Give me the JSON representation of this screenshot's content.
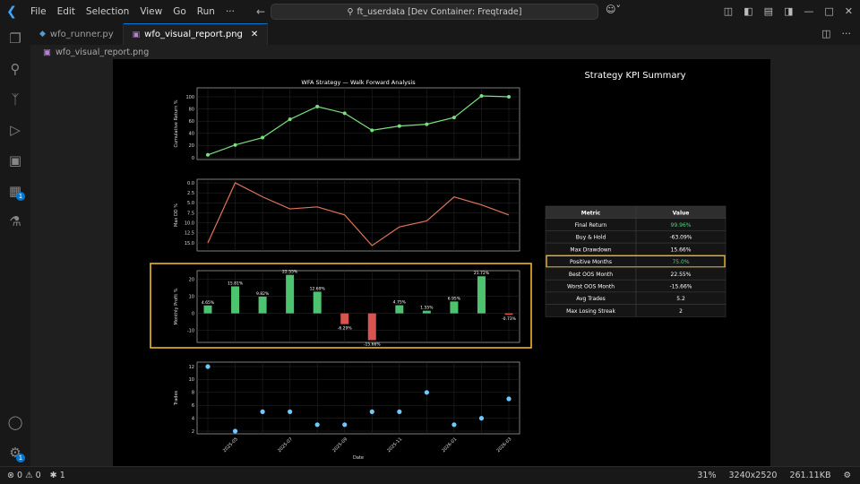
{
  "menu": [
    "File",
    "Edit",
    "Selection",
    "View",
    "Go",
    "Run",
    "···"
  ],
  "command_center": "ft_userdata [Dev Container: Freqtrade]",
  "tabs": [
    {
      "label": "wfo_runner.py",
      "icon": "python-file-icon",
      "active": false
    },
    {
      "label": "wfo_visual_report.png",
      "icon": "image-file-icon",
      "active": true
    }
  ],
  "breadcrumb": "wfo_visual_report.png",
  "activity_badges": {
    "extensions": "1",
    "manage": "1"
  },
  "status": {
    "errors": "0",
    "warnings": "0",
    "ports": "1",
    "zoom": "31%",
    "dimensions": "3240x2520",
    "filesize": "261.11KB"
  },
  "figure": {
    "suptitle": "WFA Strategy — Walk Forward Analysis",
    "kpi_title": "Strategy KPI Summary",
    "xlabel": "Date"
  },
  "chart_data": [
    {
      "type": "line",
      "ylabel": "Cumulative Return %",
      "x": [
        "2025-04",
        "2025-05",
        "2025-06",
        "2025-07",
        "2025-08",
        "2025-09",
        "2025-10",
        "2025-11",
        "2025-12",
        "2026-01",
        "2026-02",
        "2026-03"
      ],
      "y": [
        4.7,
        21.0,
        33.0,
        63.0,
        84.0,
        73.0,
        45.0,
        52.0,
        55.0,
        66.0,
        101.5,
        100.0
      ],
      "ylim": [
        0,
        100
      ],
      "yticks": [
        "0",
        "20",
        "40",
        "60",
        "80",
        "100"
      ],
      "color": "#79e07d"
    },
    {
      "type": "line",
      "ylabel": "Max DD %",
      "x": [
        "2025-04",
        "2025-05",
        "2025-06",
        "2025-07",
        "2025-08",
        "2025-09",
        "2025-10",
        "2025-11",
        "2025-12",
        "2026-01",
        "2026-02",
        "2026-03"
      ],
      "y": [
        15.0,
        0.0,
        3.5,
        6.5,
        6.0,
        8.0,
        15.66,
        11.0,
        9.5,
        3.5,
        5.5,
        8.0
      ],
      "ylim": [
        15.66,
        0
      ],
      "yticks": [
        "0.0",
        "2.5",
        "5.0",
        "7.5",
        "10.0",
        "12.5",
        "15.0"
      ],
      "color": "#e0735a"
    },
    {
      "type": "bar",
      "ylabel": "Monthly Profit %",
      "x": [
        "2025-04",
        "2025-05",
        "2025-06",
        "2025-07",
        "2025-08",
        "2025-09",
        "2025-10",
        "2025-11",
        "2025-12",
        "2026-01",
        "2026-02",
        "2026-03"
      ],
      "values": [
        4.65,
        15.81,
        9.82,
        22.55,
        12.69,
        -6.29,
        -15.66,
        4.75,
        1.55,
        6.95,
        21.72,
        -0.73
      ],
      "labels": [
        "4.65%",
        "15.81%",
        "9.82%",
        "22.55%",
        "12.69%",
        "-6.29%",
        "-15.66%",
        "4.75%",
        "1.55%",
        "6.95%",
        "21.72%",
        "-0.73%"
      ],
      "ylim": [
        -17,
        25
      ],
      "yticks": [
        "-10",
        "0",
        "10",
        "20"
      ],
      "positive_color": "#4dc26f",
      "negative_color": "#d9534f",
      "highlight_color": "#f0b429"
    },
    {
      "type": "scatter",
      "ylabel": "Trades",
      "x": [
        "2025-04",
        "2025-05",
        "2025-06",
        "2025-07",
        "2025-08",
        "2025-09",
        "2025-10",
        "2025-11",
        "2025-12",
        "2026-01",
        "2026-02",
        "2026-03"
      ],
      "y": [
        12,
        2,
        5,
        5,
        3,
        3,
        5,
        5,
        8,
        3,
        4,
        7
      ],
      "ylim": [
        2,
        12
      ],
      "yticks": [
        "2",
        "4",
        "6",
        "8",
        "10",
        "12"
      ],
      "xtick_labels": [
        "2025-05",
        "2025-07",
        "2025-09",
        "2025-11",
        "2026-01",
        "2026-03"
      ],
      "color": "#6ec8ff"
    },
    {
      "type": "table",
      "columns": [
        "Metric",
        "Value"
      ],
      "rows": [
        {
          "metric": "Final Return",
          "value": "99.96%",
          "value_color": "#4dd27a",
          "highlight": false
        },
        {
          "metric": "Buy & Hold",
          "value": "-63.09%",
          "value_color": "#ffffff",
          "highlight": false
        },
        {
          "metric": "Max Drawdown",
          "value": "15.66%",
          "value_color": "#ffffff",
          "highlight": false
        },
        {
          "metric": "Positive Months",
          "value": "75.0%",
          "value_color": "#4dd27a",
          "highlight": true
        },
        {
          "metric": "Best OOS Month",
          "value": "22.55%",
          "value_color": "#ffffff",
          "highlight": false
        },
        {
          "metric": "Worst OOS Month",
          "value": "-15.66%",
          "value_color": "#ffffff",
          "highlight": false
        },
        {
          "metric": "Avg Trades",
          "value": "5.2",
          "value_color": "#ffffff",
          "highlight": false
        },
        {
          "metric": "Max Losing Streak",
          "value": "2",
          "value_color": "#ffffff",
          "highlight": false
        }
      ],
      "highlight_color": "#f0b429"
    }
  ]
}
